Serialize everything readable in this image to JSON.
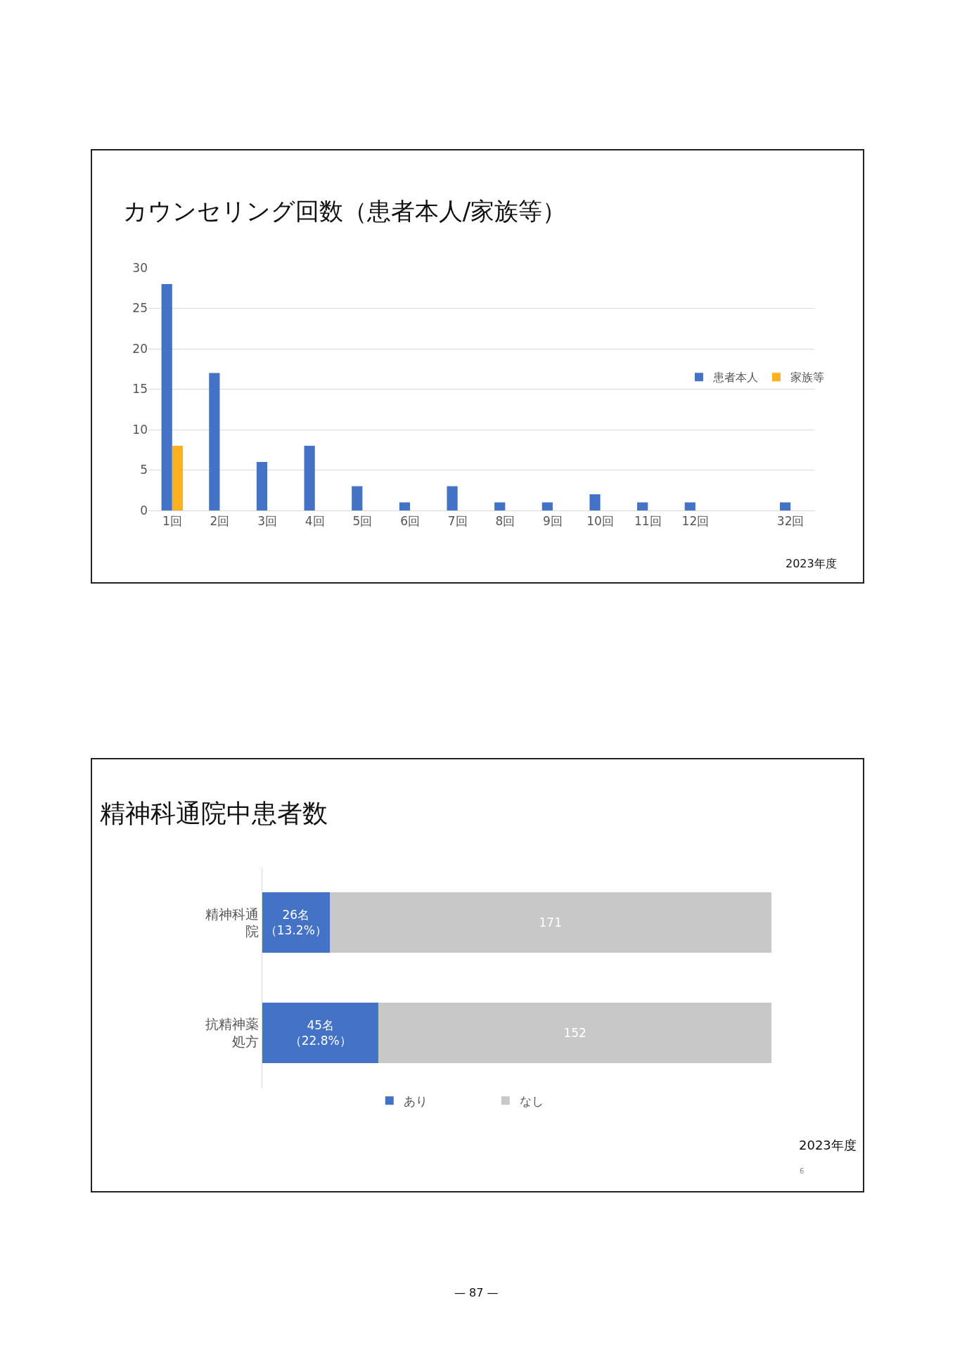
{
  "chart_data": [
    {
      "type": "bar",
      "title": "カウンセリング回数（患者本人/家族等）",
      "categories": [
        "1回",
        "2回",
        "3回",
        "4回",
        "5回",
        "6回",
        "7回",
        "8回",
        "9回",
        "10回",
        "11回",
        "12回",
        null,
        "32回"
      ],
      "series": [
        {
          "name": "患者本人",
          "color": "#4472c4",
          "values": [
            28,
            17,
            6,
            8,
            3,
            1,
            3,
            1,
            1,
            2,
            1,
            1,
            null,
            1
          ]
        },
        {
          "name": "家族等",
          "color": "#ffb01f",
          "values": [
            8,
            null,
            null,
            null,
            null,
            null,
            null,
            null,
            null,
            null,
            null,
            null,
            null,
            null
          ]
        }
      ],
      "ylim": [
        0,
        30
      ],
      "yticks": [
        0,
        5,
        10,
        15,
        20,
        25,
        30
      ],
      "grid": "y",
      "legend": "right",
      "annotations": [
        "2023年度"
      ]
    },
    {
      "type": "bar",
      "orientation": "horizontal",
      "stacked": true,
      "title": "精神科通院中患者数",
      "categories": [
        "精神科通院",
        "抗精神薬処方"
      ],
      "series": [
        {
          "name": "あり",
          "color": "#4472c4",
          "values": [
            26,
            45
          ],
          "value_labels": [
            "26名（13.2%）",
            "45名（22.8%）"
          ]
        },
        {
          "name": "なし",
          "color": "#c8c8c8",
          "values": [
            171,
            152
          ],
          "value_labels": [
            "171",
            "152"
          ]
        }
      ],
      "xlim": [
        0,
        197
      ],
      "tick_labels": "y",
      "legend": "bottom",
      "annotations": [
        "2023年度",
        "6",
        "— 87 —"
      ]
    }
  ]
}
